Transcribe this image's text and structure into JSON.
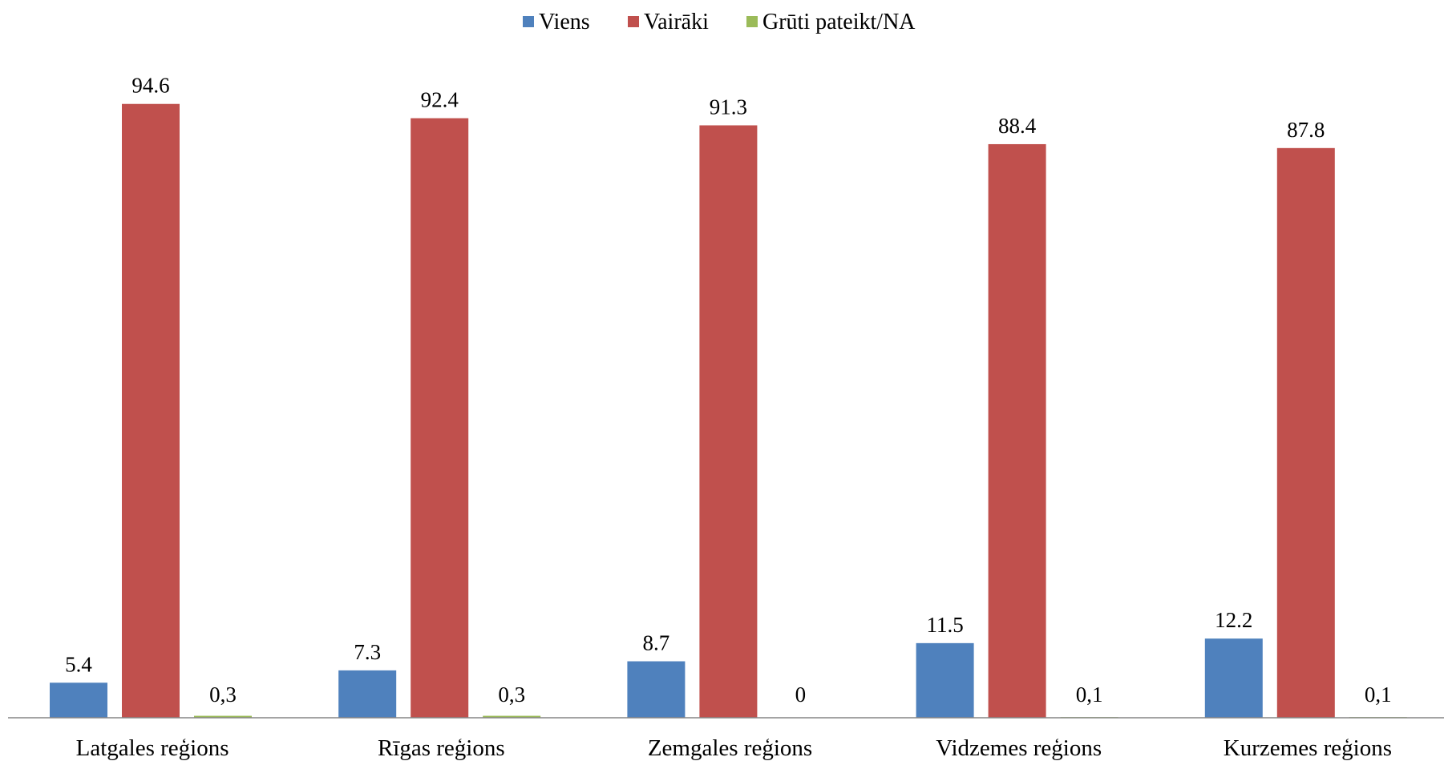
{
  "chart_data": {
    "type": "bar",
    "categories": [
      "Latgales reģions",
      "Rīgas reģions",
      "Zemgales reģions",
      "Vidzemes reģions",
      "Kurzemes reģions"
    ],
    "series": [
      {
        "name": "Viens",
        "color": "#4F81BD",
        "values": [
          5.4,
          7.3,
          8.7,
          11.5,
          12.2
        ],
        "labels": [
          "5.4",
          "7.3",
          "8.7",
          "11.5",
          "12.2"
        ]
      },
      {
        "name": "Vairāki",
        "color": "#C0504D",
        "values": [
          94.6,
          92.4,
          91.3,
          88.4,
          87.8
        ],
        "labels": [
          "94.6",
          "92.4",
          "91.3",
          "88.4",
          "87.8"
        ]
      },
      {
        "name": "Grūti pateikt/NA",
        "color": "#9BBB59",
        "values": [
          0.3,
          0.3,
          0,
          0.1,
          0.1
        ],
        "labels": [
          "0,3",
          "0,3",
          "0",
          "0,1",
          "0,1"
        ]
      }
    ],
    "legend": "top-center",
    "grid": false,
    "ylim": [
      0,
      100
    ]
  }
}
